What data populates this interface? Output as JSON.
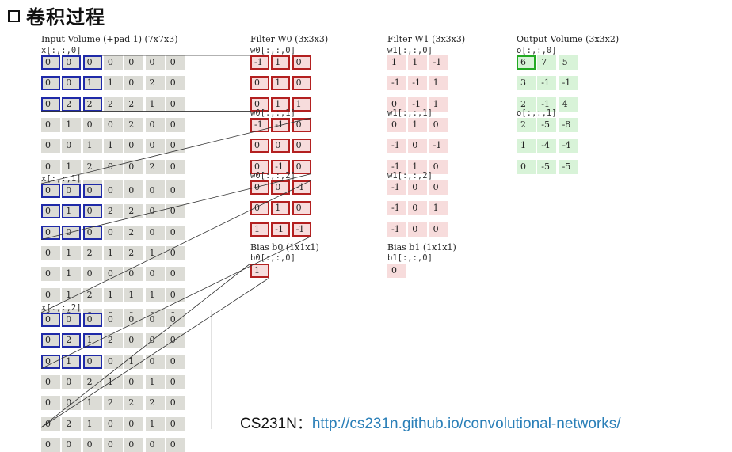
{
  "title": "卷积过程",
  "input": {
    "heading": "Input Volume (+pad 1) (7x7x3)",
    "slices": [
      {
        "label": "x[:,:,0]",
        "values": [
          [
            0,
            0,
            0,
            0,
            0,
            0,
            0
          ],
          [
            0,
            0,
            1,
            1,
            0,
            2,
            0
          ],
          [
            0,
            2,
            2,
            2,
            2,
            1,
            0
          ],
          [
            0,
            1,
            0,
            0,
            2,
            0,
            0
          ],
          [
            0,
            0,
            1,
            1,
            0,
            0,
            0
          ],
          [
            0,
            1,
            2,
            0,
            0,
            2,
            0
          ],
          [
            0,
            0,
            0,
            0,
            0,
            0,
            0
          ]
        ]
      },
      {
        "label": "x[:,:,1]",
        "values": [
          [
            0,
            0,
            0,
            0,
            0,
            0,
            0
          ],
          [
            0,
            1,
            0,
            2,
            2,
            0,
            0
          ],
          [
            0,
            0,
            0,
            0,
            2,
            0,
            0
          ],
          [
            0,
            1,
            2,
            1,
            2,
            1,
            0
          ],
          [
            0,
            1,
            0,
            0,
            0,
            0,
            0
          ],
          [
            0,
            1,
            2,
            1,
            1,
            1,
            0
          ],
          [
            0,
            0,
            0,
            0,
            0,
            0,
            0
          ]
        ]
      },
      {
        "label": "x[:,:,2]",
        "values": [
          [
            0,
            0,
            0,
            0,
            0,
            0,
            0
          ],
          [
            0,
            2,
            1,
            2,
            0,
            0,
            0
          ],
          [
            0,
            1,
            0,
            0,
            1,
            0,
            0
          ],
          [
            0,
            0,
            2,
            1,
            0,
            1,
            0
          ],
          [
            0,
            0,
            1,
            2,
            2,
            2,
            0
          ],
          [
            0,
            2,
            1,
            0,
            0,
            1,
            0
          ],
          [
            0,
            0,
            0,
            0,
            0,
            0,
            0
          ]
        ]
      }
    ]
  },
  "filter0": {
    "heading": "Filter W0 (3x3x3)",
    "slices": [
      {
        "label": "w0[:,:,0]",
        "values": [
          [
            "-1",
            "1",
            "0"
          ],
          [
            "0",
            "1",
            "0"
          ],
          [
            "0",
            "1",
            "1"
          ]
        ]
      },
      {
        "label": "w0[:,:,1]",
        "values": [
          [
            "-1",
            "-1",
            "0"
          ],
          [
            "0",
            "0",
            "0"
          ],
          [
            "0",
            "-1",
            "0"
          ]
        ]
      },
      {
        "label": "w0[:,:,2]",
        "values": [
          [
            "0",
            "0",
            "-1"
          ],
          [
            "0",
            "1",
            "0"
          ],
          [
            "1",
            "-1",
            "-1"
          ]
        ]
      }
    ],
    "bias_heading": "Bias b0 (1x1x1)",
    "bias_label": "b0[:,:,0]",
    "bias_value": "1"
  },
  "filter1": {
    "heading": "Filter W1 (3x3x3)",
    "slices": [
      {
        "label": "w1[:,:,0]",
        "values": [
          [
            "1",
            "1",
            "-1"
          ],
          [
            "-1",
            "-1",
            "1"
          ],
          [
            "0",
            "-1",
            "1"
          ]
        ]
      },
      {
        "label": "w1[:,:,1]",
        "values": [
          [
            "0",
            "1",
            "0"
          ],
          [
            "-1",
            "0",
            "-1"
          ],
          [
            "-1",
            "1",
            "0"
          ]
        ]
      },
      {
        "label": "w1[:,:,2]",
        "values": [
          [
            "-1",
            "0",
            "0"
          ],
          [
            "-1",
            "0",
            "1"
          ],
          [
            "-1",
            "0",
            "0"
          ]
        ]
      }
    ],
    "bias_heading": "Bias b1 (1x1x1)",
    "bias_label": "b1[:,:,0]",
    "bias_value": "0"
  },
  "output": {
    "heading": "Output Volume (3x3x2)",
    "slices": [
      {
        "label": "o[:,:,0]",
        "values": [
          [
            "6",
            "7",
            "5"
          ],
          [
            "3",
            "-1",
            "-1"
          ],
          [
            "2",
            "-1",
            "4"
          ]
        ]
      },
      {
        "label": "o[:,:,1]",
        "values": [
          [
            "2",
            "-5",
            "-8"
          ],
          [
            "1",
            "-4",
            "-4"
          ],
          [
            "0",
            "-5",
            "-5"
          ]
        ]
      }
    ]
  },
  "footer": {
    "prefix": "CS231N：",
    "link": "http://cs231n.github.io/convolutional-networks/"
  }
}
